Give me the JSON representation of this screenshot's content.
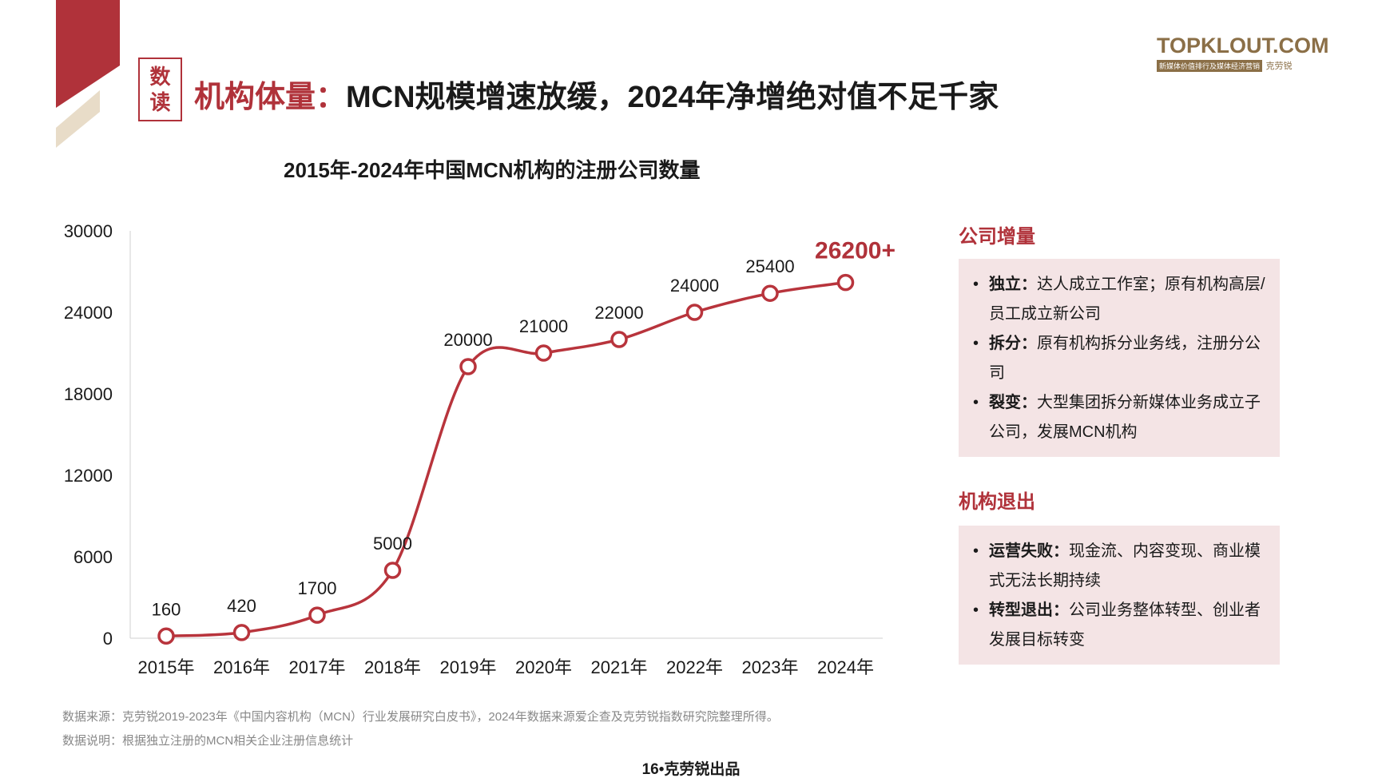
{
  "header": {
    "badge_top": "数",
    "badge_bottom": "读",
    "title_accent": "机构体量：",
    "title_rest": "MCN规模增速放缓，2024年净增绝对值不足千家"
  },
  "logo": {
    "name": "TOPKLOUT.COM",
    "tagline": "新媒体价值排行及媒体经济营销",
    "brand": "克劳锐"
  },
  "colors": {
    "accent": "#b0323a",
    "line": "#b8343c",
    "deco_gold": "#e8dcc8",
    "panel": "#f4e4e5"
  },
  "chart_data": {
    "type": "line",
    "title": "2015年-2024年中国MCN机构的注册公司数量",
    "xlabel": "",
    "ylabel": "",
    "categories": [
      "2015年",
      "2016年",
      "2017年",
      "2018年",
      "2019年",
      "2020年",
      "2021年",
      "2022年",
      "2023年",
      "2024年"
    ],
    "values": [
      160,
      420,
      1700,
      5000,
      20000,
      21000,
      22000,
      24000,
      25400,
      26200
    ],
    "data_labels": [
      "160",
      "420",
      "1700",
      "5000",
      "20000",
      "21000",
      "22000",
      "24000",
      "25400",
      "26200+"
    ],
    "y_ticks": [
      0,
      6000,
      12000,
      18000,
      24000,
      30000
    ],
    "ylim": [
      0,
      30000
    ],
    "grid": false,
    "highlight_last": true
  },
  "side": {
    "increase_title": "公司增量",
    "increase_items": [
      {
        "label": "独立：",
        "text": "达人成立工作室；原有机构高层/员工成立新公司"
      },
      {
        "label": "拆分：",
        "text": "原有机构拆分业务线，注册分公司"
      },
      {
        "label": "裂变：",
        "text": "大型集团拆分新媒体业务成立子公司，发展MCN机构"
      }
    ],
    "exit_title": "机构退出",
    "exit_items": [
      {
        "label": "运营失败：",
        "text": "现金流、内容变现、商业模式无法长期持续"
      },
      {
        "label": "转型退出：",
        "text": "公司业务整体转型、创业者发展目标转变"
      }
    ]
  },
  "notes": {
    "source": "数据来源：克劳锐2019-2023年《中国内容机构（MCN）行业发展研究白皮书》，2024年数据来源爱企查及克劳锐指数研究院整理所得。",
    "explanation": "数据说明：根据独立注册的MCN相关企业注册信息统计"
  },
  "footer": {
    "text": "16•克劳锐出品"
  }
}
